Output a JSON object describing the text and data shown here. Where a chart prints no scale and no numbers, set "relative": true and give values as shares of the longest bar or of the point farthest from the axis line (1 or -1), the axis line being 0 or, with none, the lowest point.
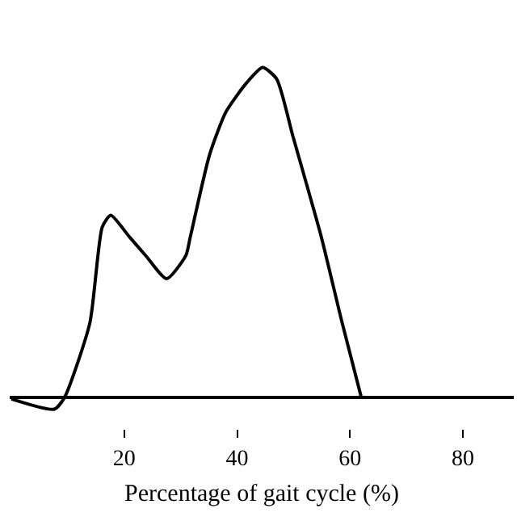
{
  "chart_data": {
    "type": "line",
    "relative": true,
    "xlabel": "Percentage of gait cycle (%)",
    "x": [
      0,
      7.6,
      9.4,
      13.9,
      16.1,
      17.6,
      20.9,
      23.8,
      27.5,
      30.9,
      31.7,
      35.1,
      38,
      41.6,
      44.5,
      47,
      49.9,
      54.9,
      58.6,
      62
    ],
    "series": [
      {
        "color": "#000000",
        "values": [
          -0.004,
          -0.035,
          0,
          0.226,
          0.517,
          0.552,
          0.487,
          0.43,
          0.36,
          0.43,
          0.487,
          0.735,
          0.865,
          0.952,
          1,
          0.965,
          0.79,
          0.487,
          0.226,
          0
        ]
      }
    ],
    "xlim": [
      -0.3,
      89
    ],
    "xticks": [
      20,
      40,
      60,
      80
    ],
    "marker": "none",
    "line_style": "solid"
  }
}
